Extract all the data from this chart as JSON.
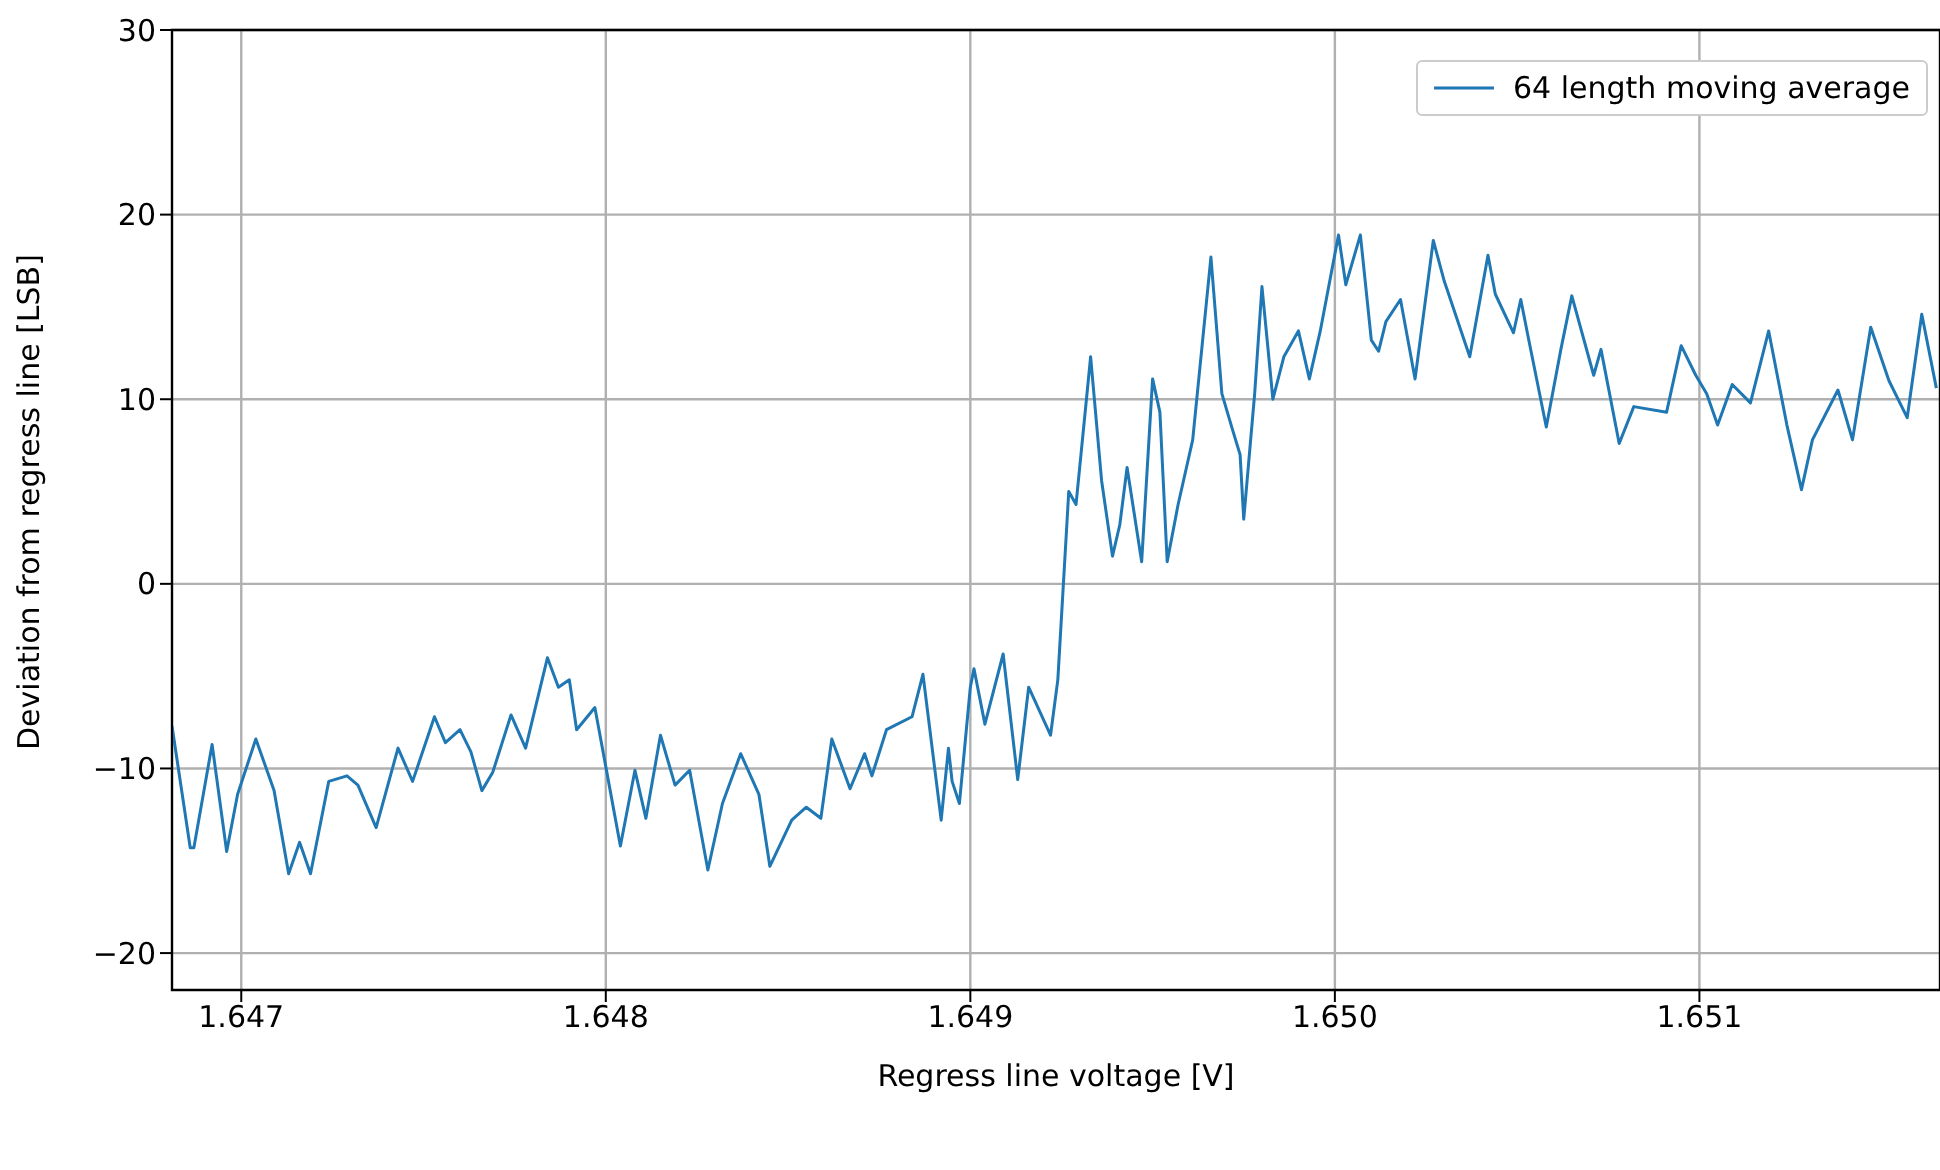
{
  "chart_data": {
    "type": "line",
    "xlabel": "Regress line voltage [V]",
    "ylabel": "Deviation from regress line [LSB]",
    "xlim": [
      1.64681,
      1.65166
    ],
    "xticks": [
      1.647,
      1.648,
      1.649,
      {
        "value": 1.65,
        "label": "1.650"
      },
      1.651
    ],
    "ylim": [
      -22,
      30
    ],
    "yticks": [
      {
        "value": -20,
        "label": "−20"
      },
      {
        "value": -10,
        "label": "−10"
      },
      0,
      10,
      20,
      30
    ],
    "grid": true,
    "legend": "top right",
    "marker": "none",
    "line_style": "solid",
    "series": [
      {
        "name": "64 length moving average",
        "color": "#1f77b4",
        "x": [
          1.64681,
          1.64686,
          1.64687,
          1.64692,
          1.64696,
          1.64699,
          1.64704,
          1.64709,
          1.64713,
          1.64716,
          1.64719,
          1.64724,
          1.64729,
          1.64732,
          1.64737,
          1.64743,
          1.64747,
          1.64753,
          1.64756,
          1.6476,
          1.64763,
          1.64766,
          1.64769,
          1.64774,
          1.64778,
          1.64784,
          1.64787,
          1.6479,
          1.64792,
          1.64797,
          1.648,
          1.64804,
          1.64808,
          1.64811,
          1.64815,
          1.64819,
          1.64823,
          1.64828,
          1.64832,
          1.64837,
          1.64842,
          1.64845,
          1.64851,
          1.64855,
          1.64859,
          1.64862,
          1.64867,
          1.64871,
          1.64873,
          1.64877,
          1.64884,
          1.64887,
          1.64892,
          1.64894,
          1.64895,
          1.64897,
          1.649,
          1.64901,
          1.64904,
          1.64909,
          1.64913,
          1.64916,
          1.64922,
          1.64924,
          1.64927,
          1.64929,
          1.64933,
          1.64936,
          1.64939,
          1.64941,
          1.64943,
          1.64947,
          1.6495,
          1.64952,
          1.64954,
          1.64957,
          1.64961,
          1.64966,
          1.64969,
          1.64972,
          1.64974,
          1.64975,
          1.64978,
          1.6498,
          1.64983,
          1.64986,
          1.6499,
          1.64993,
          1.64996,
          1.65001,
          1.65003,
          1.65007,
          1.6501,
          1.65012,
          1.65014,
          1.65018,
          1.65022,
          1.65027,
          1.6503,
          1.65037,
          1.65042,
          1.65044,
          1.65049,
          1.65051,
          1.65053,
          1.65058,
          1.65062,
          1.65065,
          1.65071,
          1.65073,
          1.65078,
          1.65082,
          1.65091,
          1.65095,
          1.65099,
          1.65102,
          1.65105,
          1.65109,
          1.65114,
          1.65119,
          1.65124,
          1.65128,
          1.65131,
          1.65138,
          1.65142,
          1.65147,
          1.65152,
          1.65157,
          1.65161,
          1.65165
        ],
        "values": [
          -7.7,
          -14.3,
          -14.3,
          -8.7,
          -14.5,
          -11.4,
          -8.4,
          -11.2,
          -15.7,
          -14.0,
          -15.7,
          -10.7,
          -10.4,
          -10.9,
          -13.2,
          -8.9,
          -10.7,
          -7.2,
          -8.6,
          -7.9,
          -9.1,
          -11.2,
          -10.2,
          -7.1,
          -8.9,
          -4.0,
          -5.6,
          -5.2,
          -7.9,
          -6.7,
          -9.9,
          -14.2,
          -10.1,
          -12.7,
          -8.2,
          -10.9,
          -10.1,
          -15.5,
          -11.9,
          -9.2,
          -11.4,
          -15.3,
          -12.8,
          -12.1,
          -12.7,
          -8.4,
          -11.1,
          -9.2,
          -10.4,
          -7.9,
          -7.2,
          -4.9,
          -12.8,
          -8.9,
          -10.7,
          -11.9,
          -5.6,
          -4.6,
          -7.6,
          -3.8,
          -10.6,
          -5.6,
          -8.2,
          -5.2,
          5.0,
          4.3,
          12.3,
          5.6,
          1.5,
          3.2,
          6.3,
          1.2,
          11.1,
          9.3,
          1.2,
          4.3,
          7.8,
          17.7,
          10.3,
          8.3,
          7.0,
          3.5,
          10.3,
          16.1,
          10.0,
          12.3,
          13.7,
          11.1,
          13.7,
          18.9,
          16.2,
          18.9,
          13.2,
          12.6,
          14.2,
          15.4,
          11.1,
          18.6,
          16.4,
          12.3,
          17.8,
          15.7,
          13.6,
          15.4,
          13.4,
          8.5,
          12.7,
          15.6,
          11.3,
          12.7,
          7.6,
          9.6,
          9.3,
          12.9,
          11.3,
          10.3,
          8.6,
          10.8,
          9.8,
          13.7,
          8.6,
          5.1,
          7.8,
          10.5,
          7.8,
          13.9,
          11.0,
          9.0,
          14.6,
          10.6
        ]
      }
    ]
  }
}
